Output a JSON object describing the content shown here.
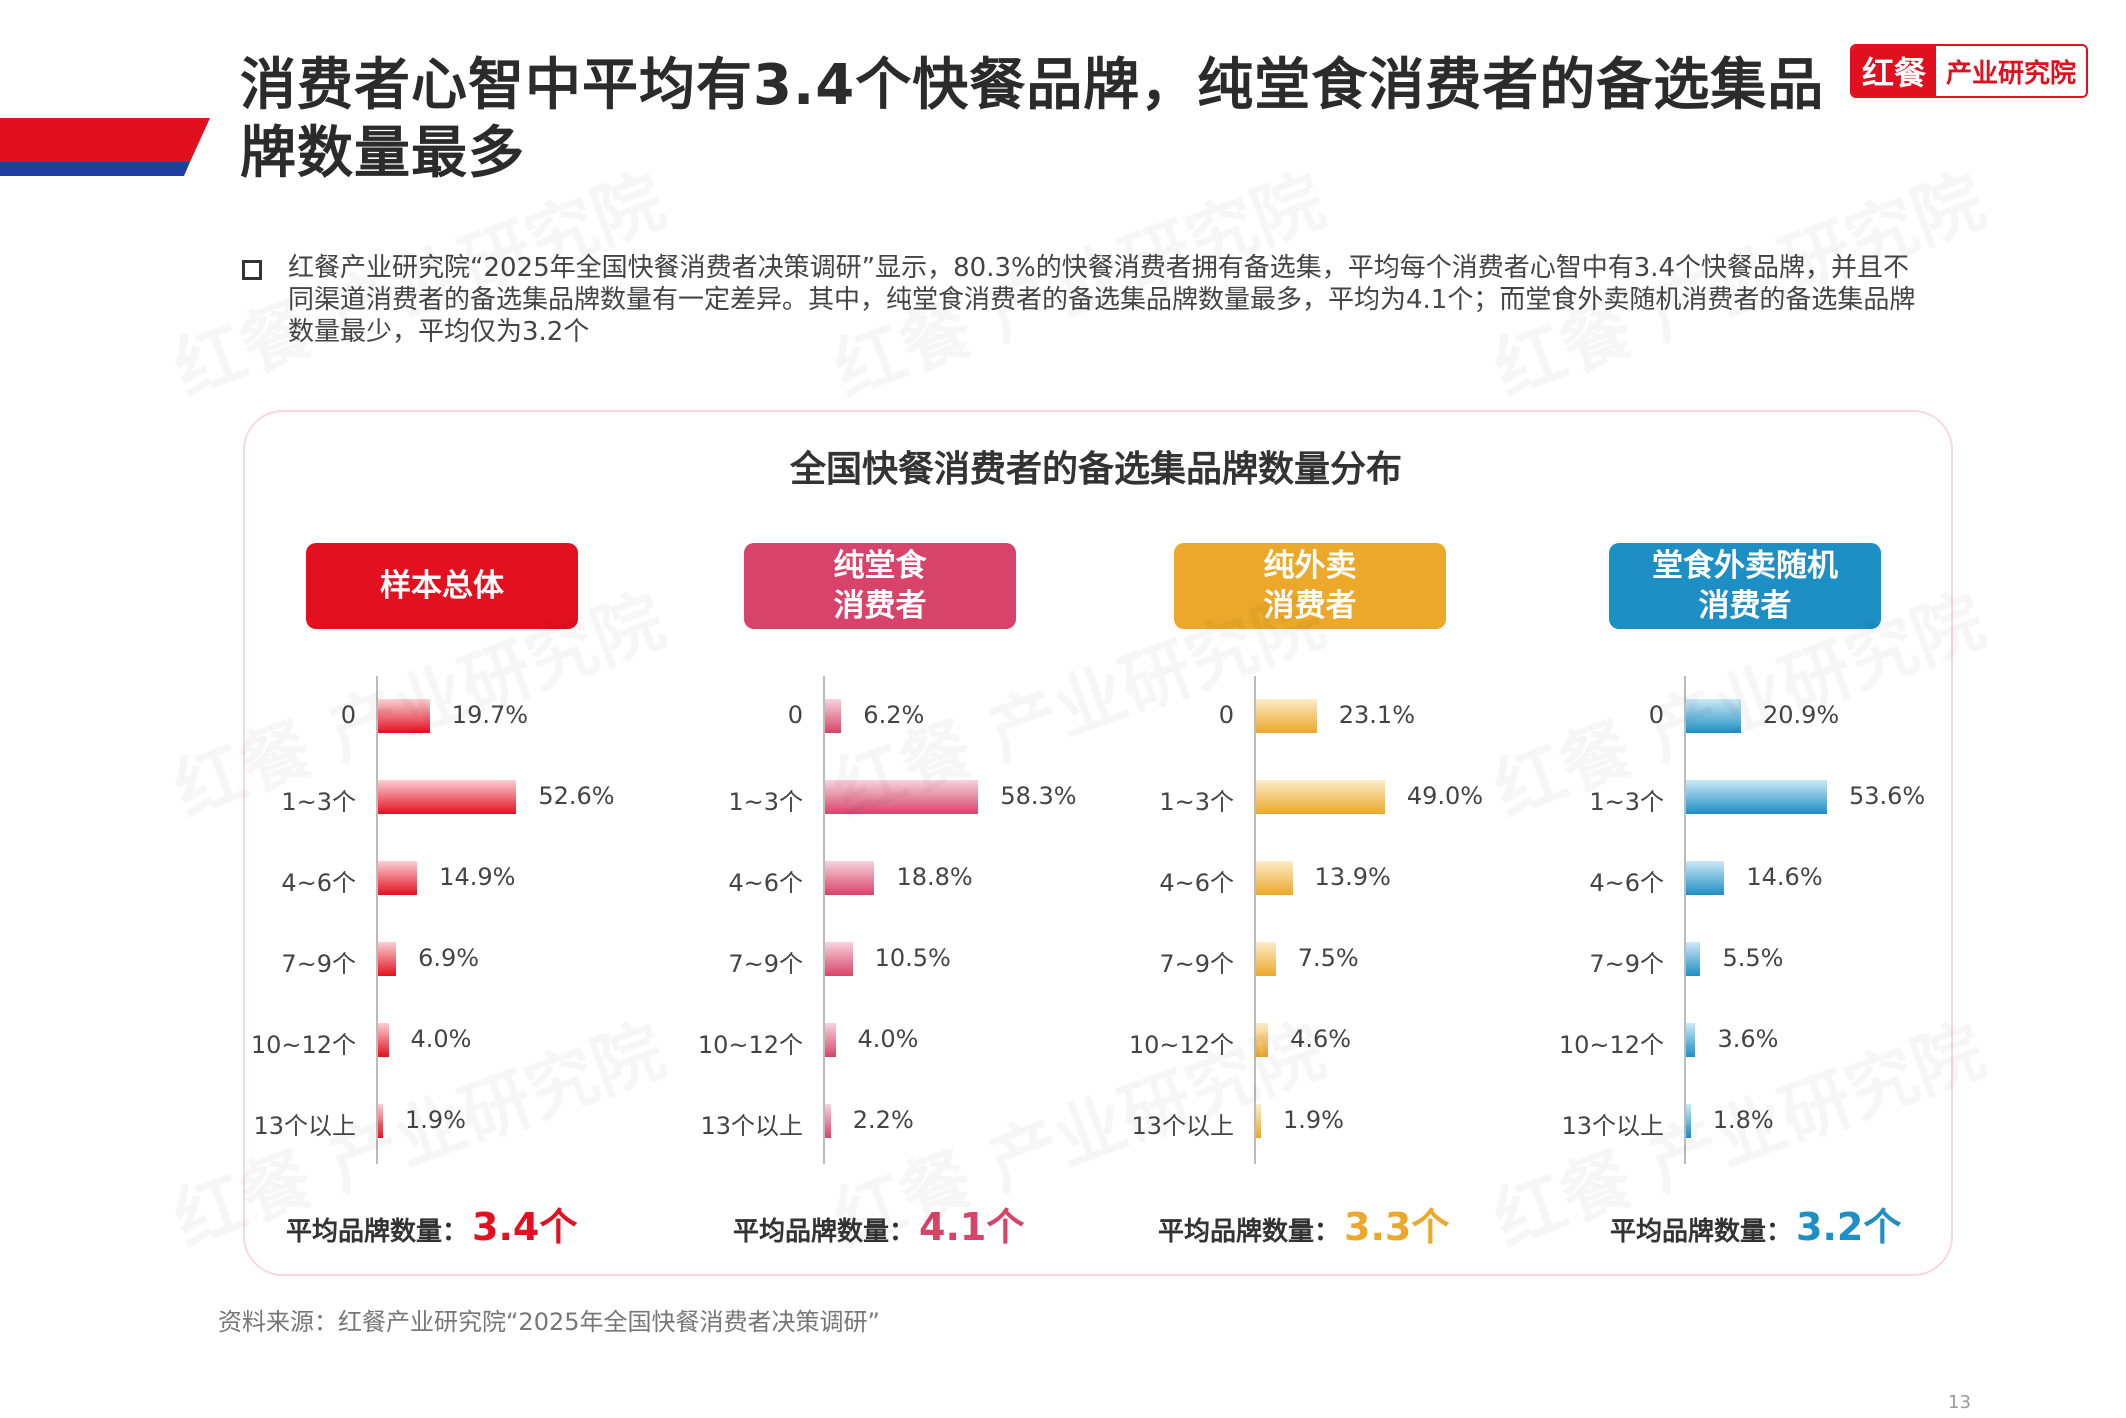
{
  "header": {
    "title": "消费者心智中平均有3.4个快餐品牌，纯堂食消费者的备选集品牌数量最多",
    "logo_brand": "红餐",
    "logo_org": "产业研究院"
  },
  "intro": {
    "text": "红餐产业研究院“2025年全国快餐消费者决策调研”显示，80.3%的快餐消费者拥有备选集，平均每个消费者心智中有3.4个快餐品牌，并且不同渠道消费者的备选集品牌数量有一定差异。其中，纯堂食消费者的备选集品牌数量最多，平均为4.1个；而堂食外卖随机消费者的备选集品牌数量最少，平均仅为3.2个"
  },
  "watermark": "红餐 产业研究院",
  "chart_data": {
    "type": "bar",
    "orientation": "horizontal",
    "title": "全国快餐消费者的备选集品牌数量分布",
    "categories": [
      "0",
      "1~3个",
      "4~6个",
      "7~9个",
      "10~12个",
      "13个以上"
    ],
    "avg_label": "平均品牌数量：",
    "series": [
      {
        "name": "样本总体",
        "values": [
          19.7,
          52.6,
          14.9,
          6.9,
          4.0,
          1.9
        ],
        "labels": [
          "19.7%",
          "52.6%",
          "14.9%",
          "6.9%",
          "4.0%",
          "1.9%"
        ],
        "avg": "3.4个",
        "color": "#e3101f",
        "light": "#fbd0d4"
      },
      {
        "name": "纯堂食\n消费者",
        "values": [
          6.2,
          58.3,
          18.8,
          10.5,
          4.0,
          2.2
        ],
        "labels": [
          "6.2%",
          "58.3%",
          "18.8%",
          "10.5%",
          "4.0%",
          "2.2%"
        ],
        "avg": "4.1个",
        "color": "#d8436a",
        "light": "#f8d3dd"
      },
      {
        "name": "纯外卖\n消费者",
        "values": [
          23.1,
          49.0,
          13.9,
          7.5,
          4.6,
          1.9
        ],
        "labels": [
          "23.1%",
          "49.0%",
          "13.9%",
          "7.5%",
          "4.6%",
          "1.9%"
        ],
        "avg": "3.3个",
        "color": "#eba82a",
        "light": "#fcecc9"
      },
      {
        "name": "堂食外卖随机\n消费者",
        "values": [
          20.9,
          53.6,
          14.6,
          5.5,
          3.6,
          1.8
        ],
        "labels": [
          "20.9%",
          "53.6%",
          "14.6%",
          "5.5%",
          "3.6%",
          "1.8%"
        ],
        "avg": "3.2个",
        "color": "#1e8fc4",
        "light": "#cde8f6"
      }
    ]
  },
  "footer": {
    "source": "资料来源：红餐产业研究院“2025年全国快餐消费者决策调研”",
    "page_number": "13"
  }
}
